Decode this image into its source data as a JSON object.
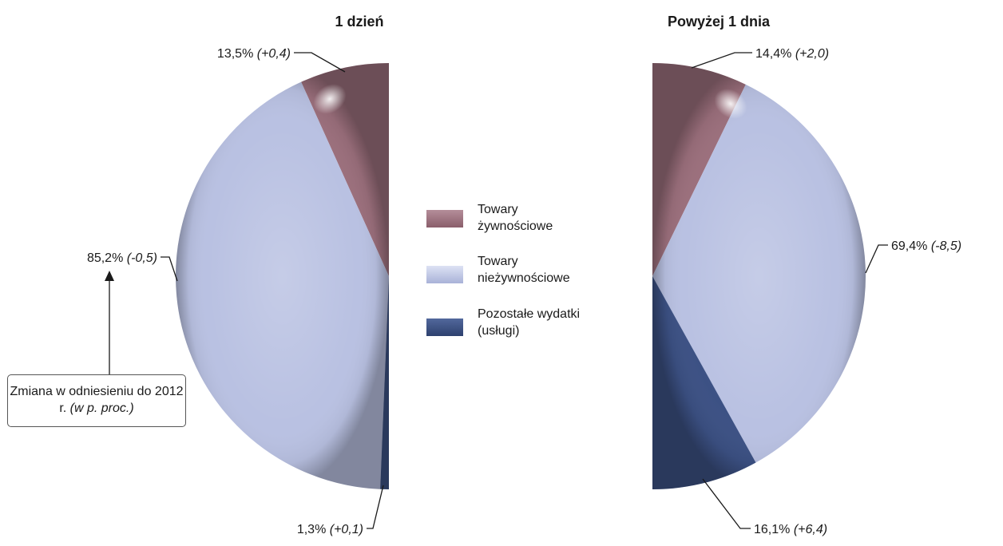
{
  "chart_data": [
    {
      "type": "pie",
      "title": "1 dzień",
      "slices": [
        {
          "category": "Towary żywnościowe",
          "value": 13.5,
          "label": "13,5%",
          "change": "(+0,4)"
        },
        {
          "category": "Towary nieżywnościowe",
          "value": 85.2,
          "label": "85,2%",
          "change": "(-0,5)"
        },
        {
          "category": "Pozostałe wydatki (usługi)",
          "value": 1.3,
          "label": "1,3%",
          "change": "(+0,1)"
        }
      ]
    },
    {
      "type": "pie",
      "title": "Powyżej 1 dnia",
      "slices": [
        {
          "category": "Towary żywnościowe",
          "value": 14.4,
          "label": "14,4%",
          "change": "(+2,0)"
        },
        {
          "category": "Towary nieżywnościowe",
          "value": 69.4,
          "label": "69,4%",
          "change": "(-8,5)"
        },
        {
          "category": "Pozostałe wydatki (usługi)",
          "value": 16.1,
          "label": "16,1%",
          "change": "(+6,4)"
        }
      ]
    }
  ],
  "legend": [
    {
      "line1": "Towary",
      "line2": "żywnościowe",
      "color": "#9b6f7c"
    },
    {
      "line1": "Towary",
      "line2": "nieżywnościowe",
      "color": "#b9c1e2"
    },
    {
      "line1": "Pozostałe wydatki",
      "line2": "(usługi)",
      "color": "#3c5184"
    }
  ],
  "note": {
    "text": "Zmiana w odniesieniu do 2012 r.",
    "emphasis": "(w p. proc.)"
  },
  "colors": {
    "food": "#9b6f7c",
    "nonfood": "#b9c1e2",
    "services": "#3c5184"
  }
}
